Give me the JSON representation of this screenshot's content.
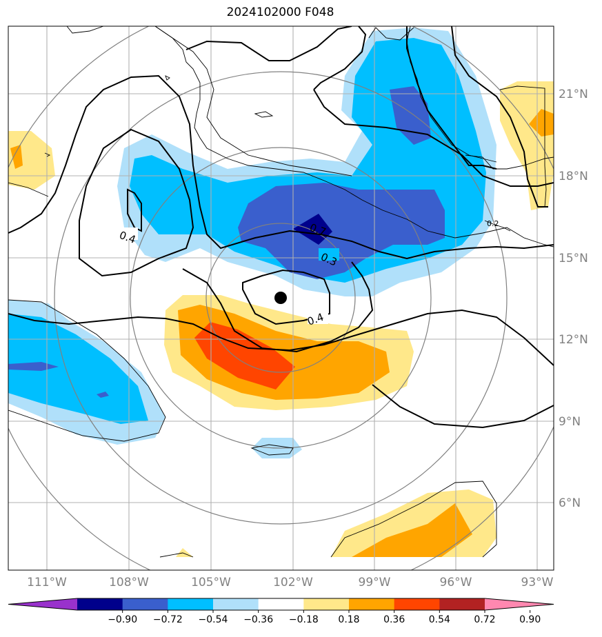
{
  "title": "2024102000 F048",
  "map": {
    "lat_labels": [
      "21°N",
      "18°N",
      "15°N",
      "12°N",
      "9°N",
      "6°N"
    ],
    "lon_labels": [
      "111°W",
      "108°W",
      "105°W",
      "102°W",
      "99°W",
      "96°W",
      "93°W"
    ],
    "contour_labels": [
      "0.4",
      "0.7",
      "0.3",
      "0.4",
      "0.2"
    ],
    "storm_center": "102.4°W 13.5°N"
  },
  "colorbar": {
    "tick_labels": [
      "−0.90",
      "−0.72",
      "−0.54",
      "−0.36",
      "−0.18",
      "0.18",
      "0.36",
      "0.54",
      "0.72",
      "0.90"
    ],
    "colors": [
      "#9932cc",
      "#00008b",
      "#3a5fcd",
      "#00bfff",
      "#b0e0fa",
      "#ffffff",
      "#ffe88a",
      "#ffa500",
      "#ff4500",
      "#b22222",
      "#ff88b0"
    ]
  }
}
